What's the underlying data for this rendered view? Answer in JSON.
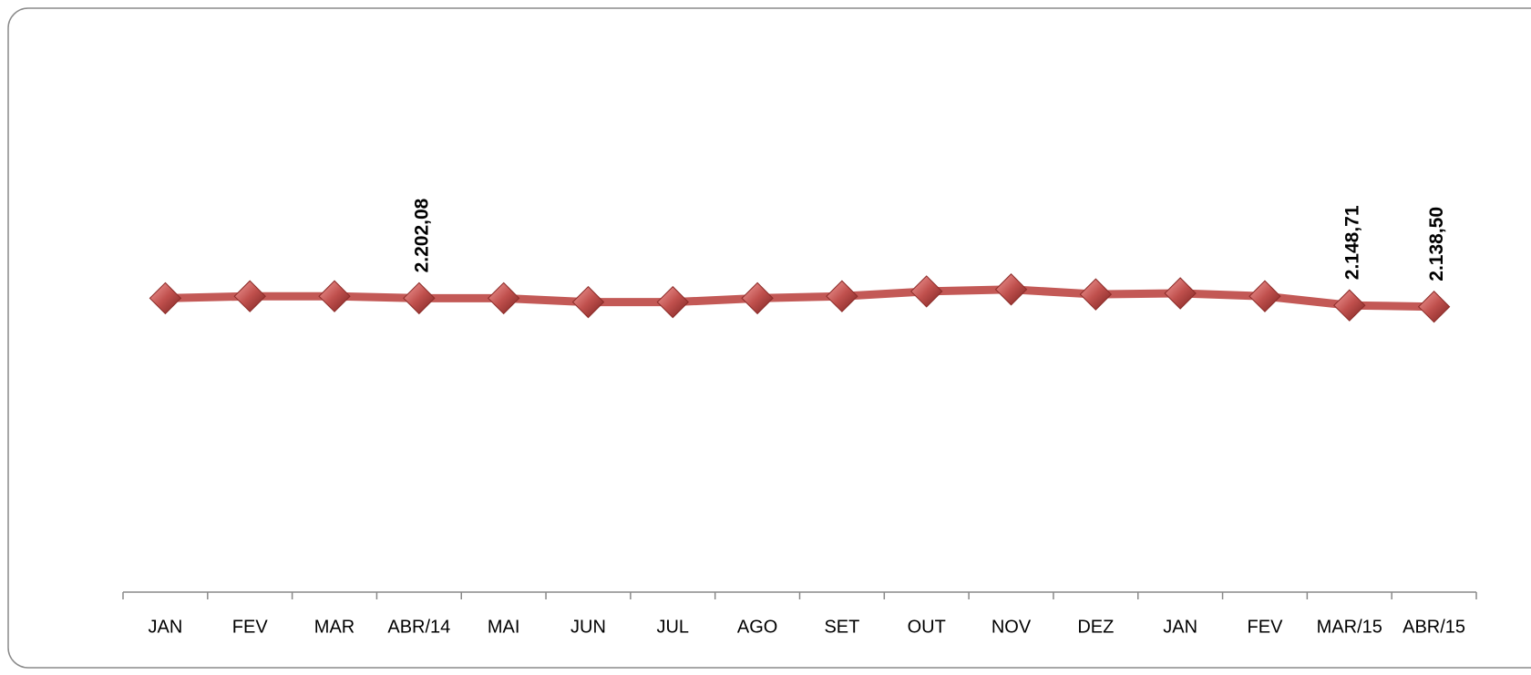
{
  "chart_data": {
    "type": "line",
    "categories": [
      "JAN",
      "FEV",
      "MAR",
      "ABR/14",
      "MAI",
      "JUN",
      "JUL",
      "AGO",
      "SET",
      "OUT",
      "NOV",
      "DEZ",
      "JAN",
      "FEV",
      "MAR/15",
      "ABR/15"
    ],
    "series": [
      {
        "color": "#c0504d",
        "values": [
          2202,
          2217,
          2217,
          2202.08,
          2202,
          2173,
          2173,
          2202,
          2217,
          2253,
          2268,
          2231,
          2239,
          2217,
          2148.71,
          2138.5
        ],
        "value_labels": [
          null,
          null,
          null,
          "2.202,08",
          null,
          null,
          null,
          null,
          null,
          null,
          null,
          null,
          null,
          null,
          "2.148,71",
          "2.138,50"
        ]
      }
    ],
    "ylim": [
      0,
      4000
    ]
  }
}
